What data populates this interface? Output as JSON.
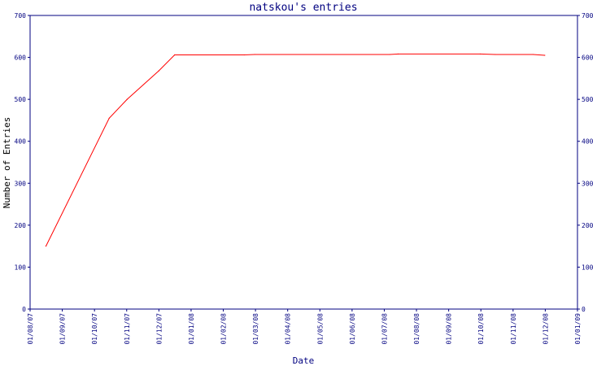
{
  "chart_data": {
    "type": "line",
    "title": "natskou's entries",
    "xlabel": "Date",
    "ylabel": "Number of Entries",
    "ylim": [
      0,
      700
    ],
    "y_ticks": [
      "0",
      "100",
      "200",
      "300",
      "400",
      "500",
      "600",
      "700"
    ],
    "x_tick_labels": [
      "01/08/07",
      "01/09/07",
      "01/10/07",
      "01/11/07",
      "01/12/07",
      "01/01/08",
      "01/02/08",
      "01/03/08",
      "01/04/08",
      "01/05/08",
      "01/06/08",
      "01/07/08",
      "01/08/08",
      "01/09/08",
      "01/10/08",
      "01/11/08",
      "01/12/08",
      "01/01/09"
    ],
    "x_range": [
      "2007-08-01",
      "2009-01-01"
    ],
    "grid": false,
    "series": [
      {
        "color": "#ff0000",
        "points": [
          {
            "x": "2007-08-16",
            "y": 150
          },
          {
            "x": "2007-10-15",
            "y": 455
          },
          {
            "x": "2007-11-01",
            "y": 500
          },
          {
            "x": "2007-12-01",
            "y": 568
          },
          {
            "x": "2007-12-16",
            "y": 606
          },
          {
            "x": "2008-02-20",
            "y": 606
          },
          {
            "x": "2008-03-01",
            "y": 607
          },
          {
            "x": "2008-07-07",
            "y": 607
          },
          {
            "x": "2008-07-15",
            "y": 608
          },
          {
            "x": "2008-10-01",
            "y": 608
          },
          {
            "x": "2008-10-15",
            "y": 607
          },
          {
            "x": "2008-11-20",
            "y": 607
          },
          {
            "x": "2008-12-01",
            "y": 605
          }
        ]
      }
    ],
    "colors": {
      "axis": "#000080",
      "line": "#ff0000",
      "text": "#000080"
    }
  }
}
